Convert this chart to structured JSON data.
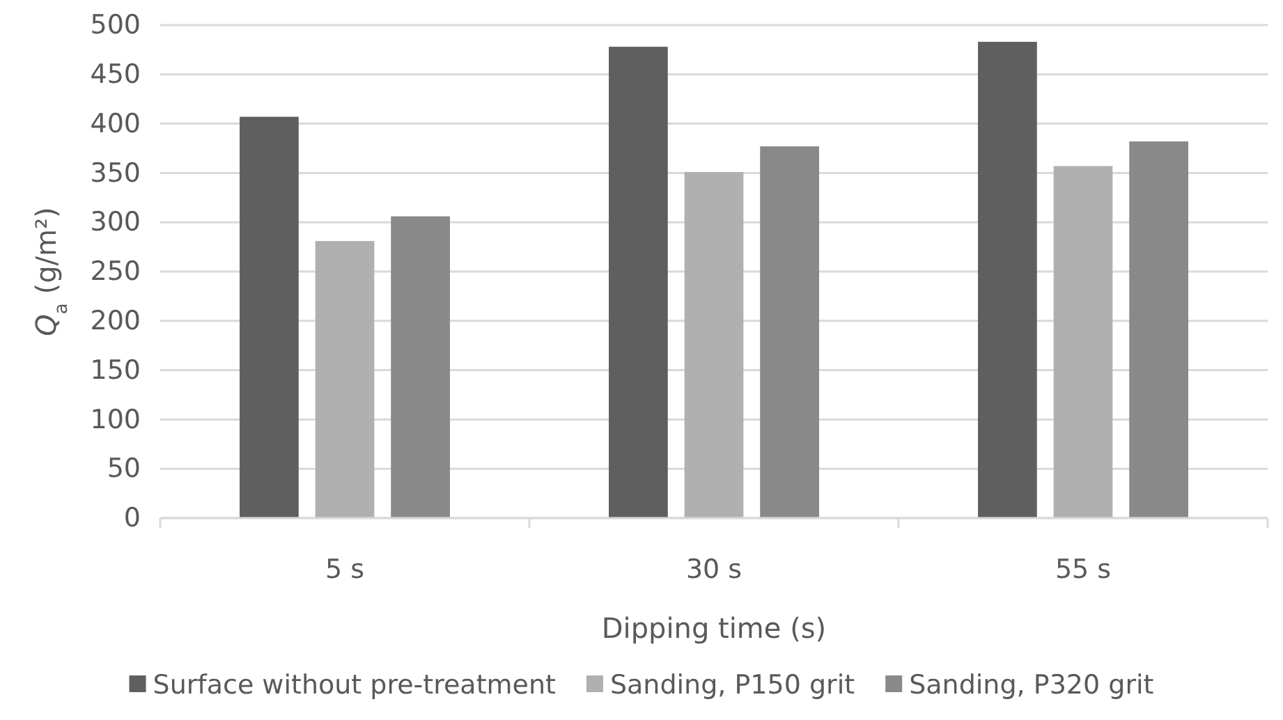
{
  "chart_data": {
    "type": "bar",
    "xlabel": "Dipping time (s)",
    "ylabel": "Q$_{a}$ (g/m²)",
    "categories": [
      "5 s",
      "30 s",
      "55 s"
    ],
    "series": [
      {
        "name": "Surface without pre-treatment",
        "color": "#5f5f5f",
        "values": [
          407,
          478,
          483
        ]
      },
      {
        "name": "Sanding, P150 grit",
        "color": "#b0b0b0",
        "values": [
          281,
          351,
          357
        ]
      },
      {
        "name": "Sanding, P320 grit",
        "color": "#898989",
        "values": [
          306,
          377,
          382
        ]
      }
    ],
    "ylim": [
      0,
      500
    ],
    "yticks": [
      0,
      50,
      100,
      150,
      200,
      250,
      300,
      350,
      400,
      450,
      500
    ],
    "grid": "y",
    "legend": "bottom"
  }
}
